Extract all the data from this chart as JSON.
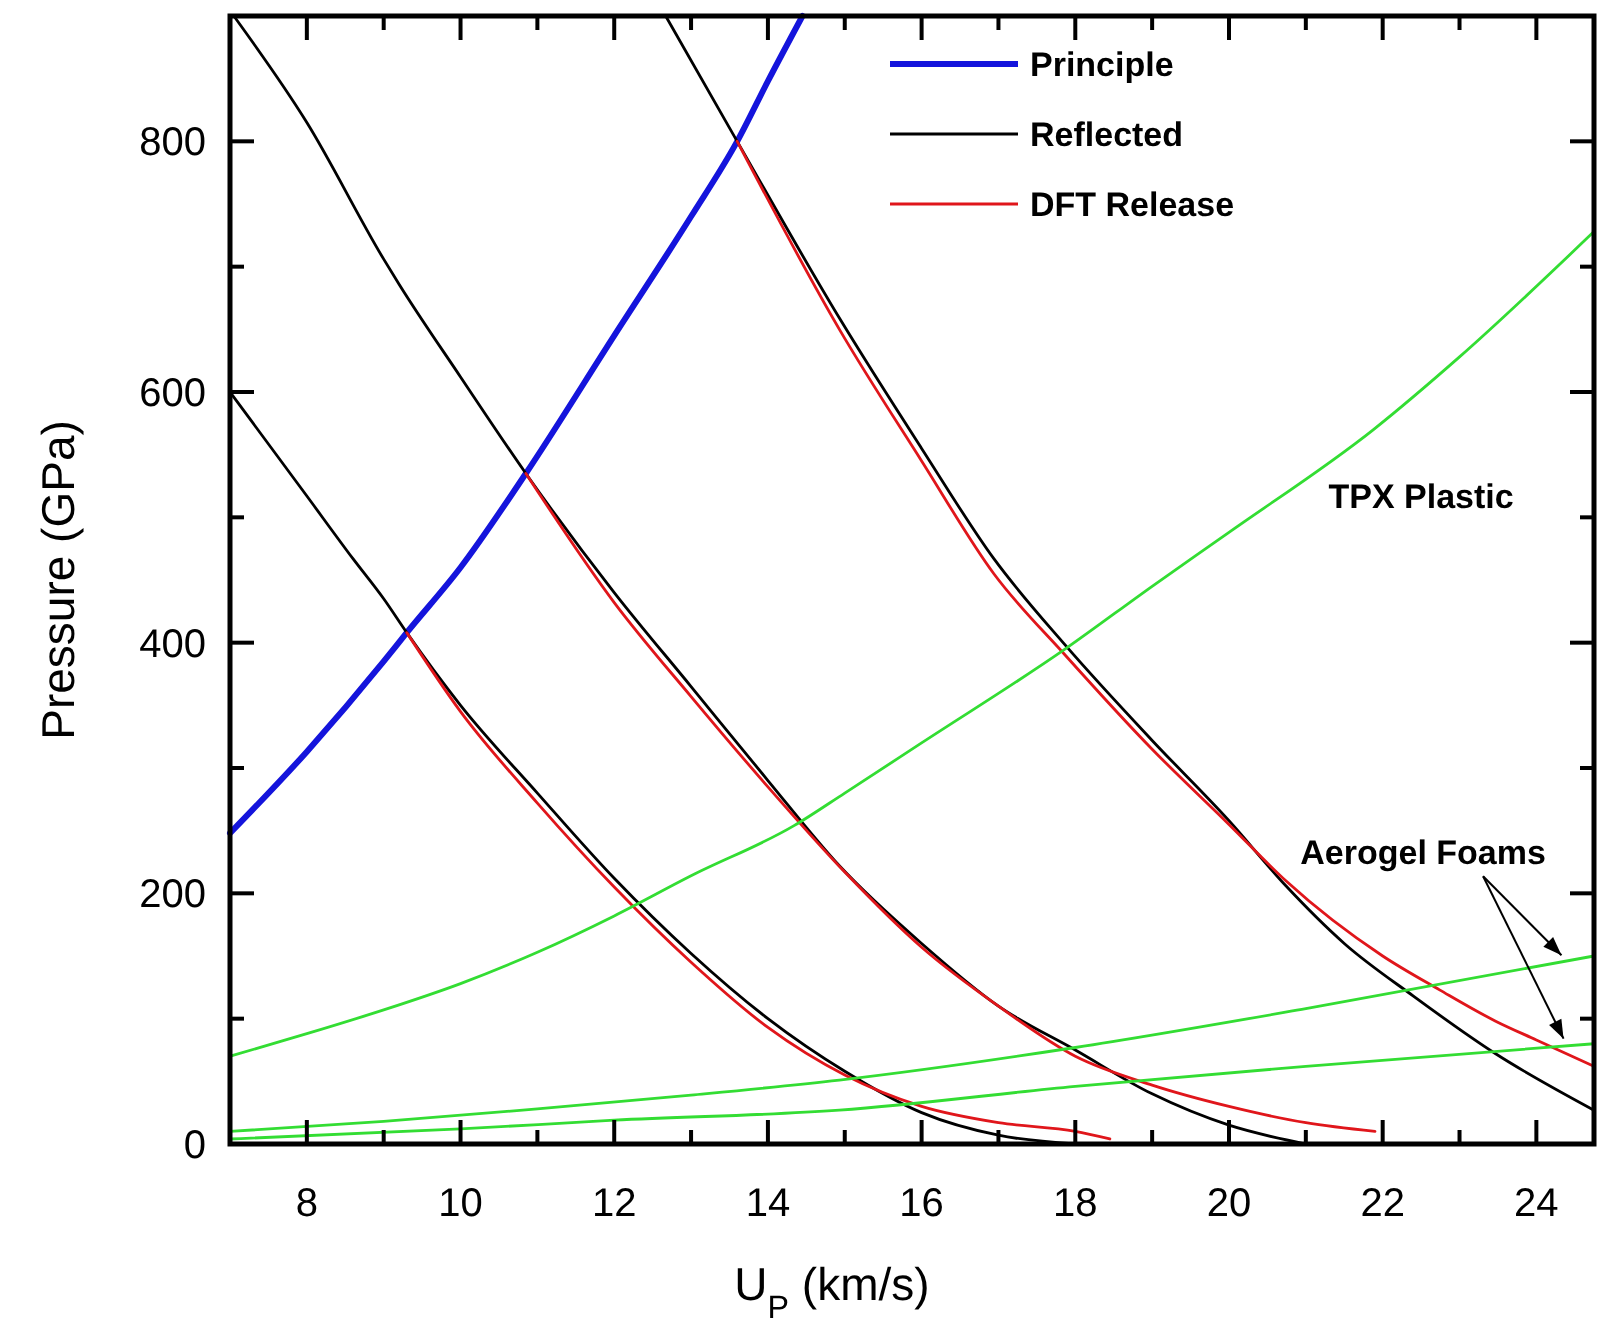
{
  "chart_data": {
    "type": "line",
    "xlabel": "U$_{P}$ (km/s)",
    "ylabel": "Pressure (GPa)",
    "xlim": [
      7,
      24.75
    ],
    "ylim": [
      0,
      900
    ],
    "xticks": [
      8,
      {
        "value": 9,
        "label": null
      },
      10,
      {
        "value": 11,
        "label": null
      },
      12,
      {
        "value": 13,
        "label": null
      },
      14,
      {
        "value": 15,
        "label": null
      },
      16,
      {
        "value": 17,
        "label": null
      },
      18,
      {
        "value": 19,
        "label": null
      },
      20,
      {
        "value": 21,
        "label": null
      },
      22,
      {
        "value": 23,
        "label": null
      },
      24
    ],
    "yticks": [
      0,
      {
        "value": 100,
        "label": null
      },
      200,
      {
        "value": 300,
        "label": null
      },
      400,
      {
        "value": 500,
        "label": null
      },
      600,
      {
        "value": 700,
        "label": null
      },
      800
    ],
    "legend": "top",
    "grid": false,
    "marker": "none",
    "line_style": "solid",
    "series": [
      {
        "name": "Principle",
        "color": "#1414dc",
        "x": [
          7,
          8,
          9,
          9.3,
          10,
          10.85,
          12,
          13,
          13.6,
          14,
          14.45
        ],
        "values": [
          248,
          313,
          385,
          408,
          460,
          535,
          645,
          740,
          800,
          848,
          900
        ]
      },
      {
        "name": "Reflected",
        "color": "#000000",
        "x": [
          7,
          8,
          8.6,
          9,
          9.3,
          10,
          11,
          12,
          13,
          14,
          15,
          16,
          17,
          18
        ],
        "values": [
          600,
          517,
          467,
          435,
          408,
          350,
          280,
          212,
          152,
          100,
          58,
          25,
          7,
          0
        ]
      },
      {
        "color": "#000000",
        "x": [
          7.05,
          8,
          9,
          9.2,
          10,
          10.85,
          12,
          13,
          14,
          14.93,
          16,
          17,
          18,
          19,
          20,
          21
        ],
        "values": [
          900,
          815,
          706,
          686,
          612,
          535,
          440,
          365,
          290,
          222,
          160,
          110,
          75,
          40,
          15,
          0
        ]
      },
      {
        "color": "#000000",
        "x": [
          12.67,
          13.6,
          14.93,
          16,
          16.94,
          17.87,
          19,
          20,
          20.74,
          21.5,
          22.4,
          23.47,
          24.75
        ],
        "values": [
          900,
          800,
          659,
          555,
          467,
          398,
          322,
          258,
          206,
          160,
          118,
          72,
          27
        ]
      },
      {
        "name": "DFT Release",
        "color": "#e0161b",
        "x": [
          9.3,
          10,
          11,
          12,
          13,
          14,
          15,
          16,
          17,
          18,
          18.45
        ],
        "values": [
          408,
          345,
          272,
          205,
          145,
          93,
          55,
          30,
          17,
          10,
          4
        ]
      },
      {
        "color": "#e0161b",
        "x": [
          10.85,
          12,
          13,
          14,
          15,
          16,
          17,
          18,
          19,
          20,
          21,
          21.9
        ],
        "values": [
          535,
          432,
          357,
          285,
          217,
          157,
          110,
          70,
          47,
          30,
          17,
          10
        ]
      },
      {
        "color": "#e0161b",
        "x": [
          13.6,
          14.93,
          16,
          16.94,
          17.87,
          19,
          20,
          20.74,
          22,
          22.74,
          23.47,
          24,
          24.75
        ],
        "values": [
          800,
          650,
          545,
          455,
          390,
          315,
          255,
          210,
          150,
          123,
          98,
          83,
          62
        ]
      },
      {
        "color": "#33dd33",
        "x": [
          7,
          8,
          9,
          10,
          11,
          12,
          13,
          14.34,
          15,
          16,
          17.87,
          19,
          20,
          21.88,
          23,
          24.75
        ],
        "values": [
          70,
          88,
          107,
          128,
          153,
          182,
          214,
          254,
          280,
          320,
          395,
          445,
          488,
          570,
          628,
          728
        ]
      },
      {
        "color": "#33dd33",
        "x": [
          7,
          9,
          11,
          13,
          14.93,
          18,
          21,
          24.75
        ],
        "values": [
          10,
          18,
          28,
          39,
          51,
          77,
          108,
          150
        ]
      },
      {
        "color": "#33dd33",
        "x": [
          7,
          10,
          12,
          14.93,
          18,
          21,
          24.75
        ],
        "values": [
          4,
          12,
          19,
          27,
          46,
          62,
          80
        ]
      }
    ],
    "annotations": [
      {
        "text": "TPX Plastic",
        "x": 22.5,
        "y": 605
      },
      {
        "text": "Aerogel Foams",
        "x": 24.4,
        "y": 145
      }
    ]
  }
}
